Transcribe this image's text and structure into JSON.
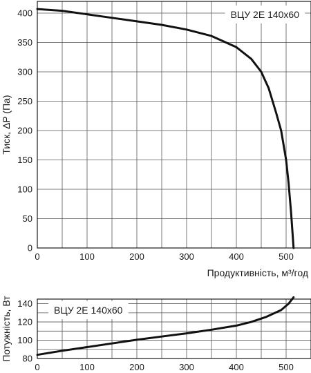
{
  "chart_data": [
    {
      "type": "line",
      "title": "",
      "series_label": "ВЦУ 2Е 140х60",
      "xlabel": "Продуктивність, м³/год",
      "ylabel": "Тиск, ΔP (Па)",
      "xlim": [
        0,
        550
      ],
      "ylim": [
        0,
        420
      ],
      "xticks": [
        0,
        100,
        200,
        300,
        400,
        500
      ],
      "yticks": [
        0,
        50,
        100,
        150,
        200,
        250,
        300,
        350,
        400
      ],
      "grid": true,
      "legend_position": "top-right",
      "series": [
        {
          "x": [
            0,
            50,
            100,
            150,
            200,
            250,
            300,
            350,
            400,
            430,
            450,
            465,
            480,
            490,
            500,
            505,
            510,
            515
          ],
          "y": [
            407,
            404,
            398,
            392,
            386,
            380,
            372,
            361,
            342,
            322,
            300,
            272,
            230,
            200,
            150,
            110,
            60,
            0
          ]
        }
      ]
    },
    {
      "type": "line",
      "title": "",
      "series_label": "ВЦУ 2Е 140х60",
      "xlabel": "",
      "ylabel": "Потужність, Вт",
      "xlim": [
        0,
        550
      ],
      "ylim": [
        80,
        145
      ],
      "xticks": [
        0,
        100,
        200,
        300,
        400,
        500
      ],
      "yticks": [
        80,
        100,
        120,
        140
      ],
      "grid": true,
      "legend_position": "top-left",
      "series": [
        {
          "x": [
            0,
            50,
            100,
            150,
            200,
            250,
            300,
            350,
            400,
            430,
            460,
            490,
            505,
            515
          ],
          "y": [
            84,
            88.5,
            92.5,
            96.5,
            100.5,
            104,
            107.5,
            111.5,
            116,
            120,
            125.5,
            133,
            140,
            147
          ]
        }
      ]
    }
  ]
}
